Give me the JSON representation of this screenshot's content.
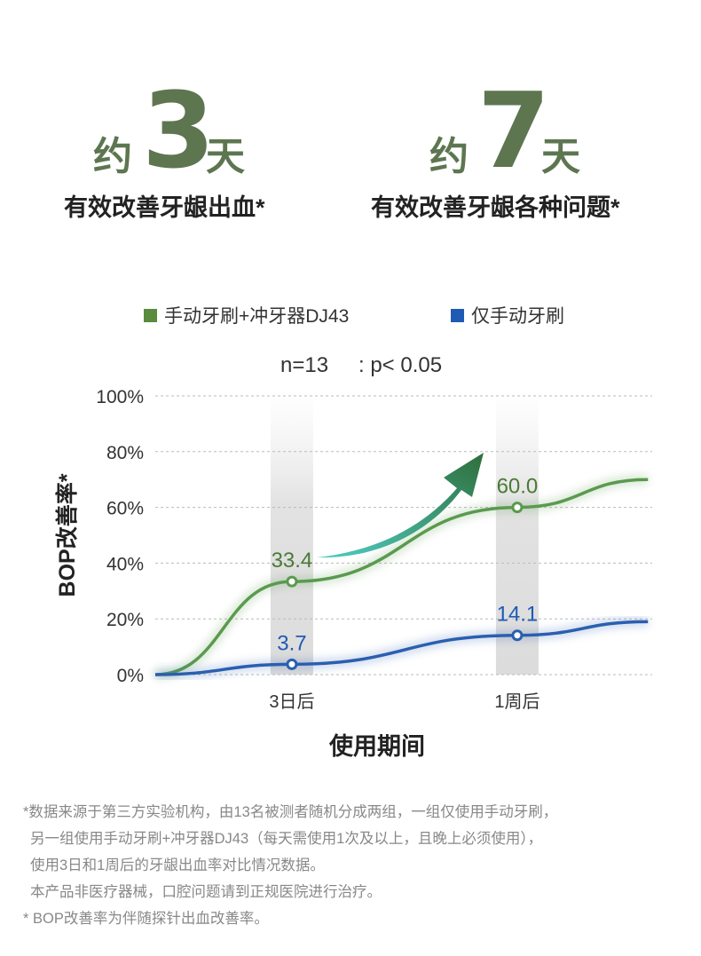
{
  "headline_left": {
    "prefix": "约",
    "number": "3",
    "suffix": "天",
    "subtitle": "有效改善牙龈出血*"
  },
  "headline_right": {
    "prefix": "约",
    "number": "7",
    "suffix": "天",
    "subtitle": "有效改善牙龈各种问题*"
  },
  "colors": {
    "accent": "#5d7650",
    "green": "#5a9a4e",
    "blue": "#2a5fb0",
    "arrow": "#3aa98a"
  },
  "chart_data": {
    "type": "line",
    "legend": [
      "手动牙刷+冲牙器DJ43",
      "仅手动牙刷"
    ],
    "legend_placement": "top",
    "annotation": {
      "n": "n=13",
      "p": ": p< 0.05"
    },
    "ylabel": "BOP改善率*",
    "xlabel": "使用期间",
    "yticks": [
      "0%",
      "20%",
      "40%",
      "60%",
      "80%",
      "100%"
    ],
    "ylim": [
      0,
      100
    ],
    "categories": [
      "3日后",
      "1周后"
    ],
    "x": [
      0,
      1,
      2,
      2.58
    ],
    "series": [
      {
        "name": "手动牙刷+冲牙器DJ43",
        "values": [
          0,
          33.4,
          60.0,
          70
        ],
        "labels": [
          "33.4",
          "60.0"
        ]
      },
      {
        "name": "仅手动牙刷",
        "values": [
          0,
          3.7,
          14.1,
          19
        ],
        "labels": [
          "3.7",
          "14.1"
        ]
      }
    ],
    "grid": true
  },
  "notes": [
    "*数据来源于第三方实验机构，由13名被测者随机分成两组，一组仅使用手动牙刷，",
    "另一组使用手动牙刷+冲牙器DJ43（每天需使用1次及以上，且晚上必须使用），",
    "使用3日和1周后的牙龈出血率对比情况数据。",
    "本产品非医疗器械，口腔问题请到正规医院进行治疗。",
    "* BOP改善率为伴随探针出血改善率。"
  ]
}
